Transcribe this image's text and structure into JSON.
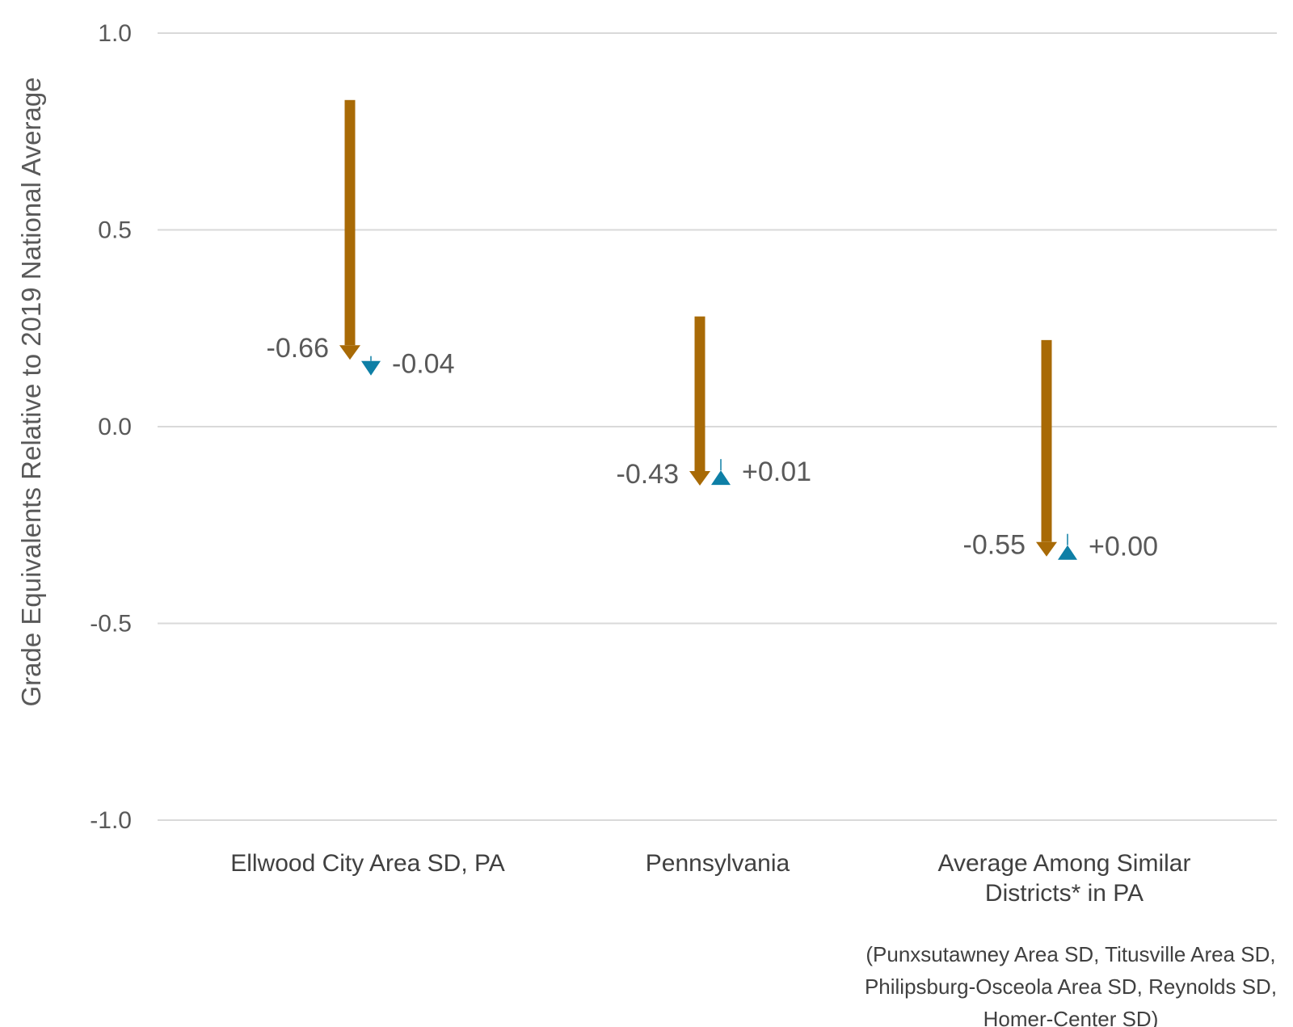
{
  "chart_data": {
    "type": "arrow",
    "ylabel": "Grade Equivalents Relative to 2019 National Average",
    "ylim": [
      -1.0,
      1.0
    ],
    "yticks": [
      {
        "value": 1.0,
        "label": "1.0"
      },
      {
        "value": 0.5,
        "label": "0.5"
      },
      {
        "value": 0.0,
        "label": "0.0"
      },
      {
        "value": -0.5,
        "label": "-0.5"
      },
      {
        "value": -1.0,
        "label": "-1.0"
      }
    ],
    "grid": true,
    "categories": [
      {
        "label_lines": [
          "Ellwood City Area SD, PA"
        ],
        "start": 0.83,
        "after_first_change": 0.17,
        "first_change_label": "-0.66",
        "second_change_label": "-0.04",
        "second_change_direction": "down",
        "end": 0.13
      },
      {
        "label_lines": [
          "Pennsylvania"
        ],
        "start": 0.28,
        "after_first_change": -0.15,
        "first_change_label": "-0.43",
        "second_change_label": "+0.01",
        "second_change_direction": "up",
        "end": -0.14
      },
      {
        "label_lines": [
          "Average Among Similar",
          "Districts* in PA"
        ],
        "start": 0.22,
        "after_first_change": -0.33,
        "first_change_label": "-0.55",
        "second_change_label": "+0.00",
        "second_change_direction": "up",
        "end": -0.33
      }
    ],
    "colors": {
      "first_change": "#A86A06",
      "second_change": "#0E7FA6",
      "grid": "#d9d9d9"
    },
    "footnote_lines": [
      "(Punxsutawney Area SD, Titusville Area SD,",
      "Philipsburg-Osceola Area SD, Reynolds SD,",
      "Homer-Center SD)"
    ]
  }
}
